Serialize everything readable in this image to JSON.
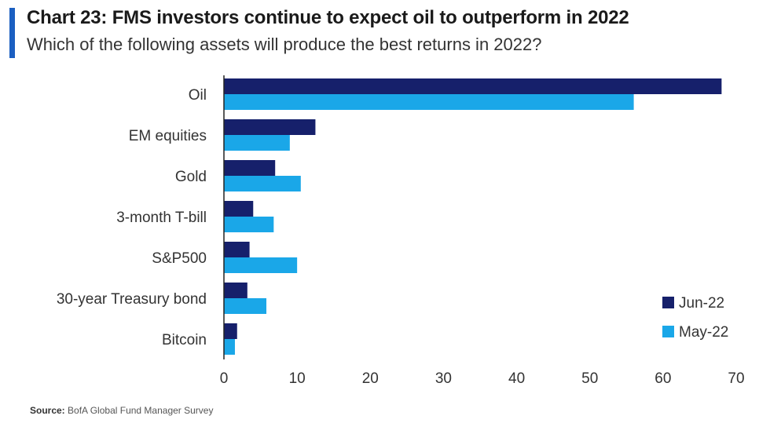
{
  "header": {
    "title": "Chart 23: FMS investors continue to expect oil to outperform in 2022",
    "subtitle": "Which of the following assets will produce the best returns in 2022?"
  },
  "footer": {
    "source_label": "Source:",
    "source_text": "BofA Global Fund Manager Survey"
  },
  "colors": {
    "accent_bar": "#1b5fc1",
    "jun": "#16206b",
    "may": "#1aa7e8"
  },
  "chart_data": {
    "type": "bar",
    "orientation": "horizontal",
    "categories": [
      "Oil",
      "EM equities",
      "Gold",
      "3-month T-bill",
      "S&P500",
      "30-year Treasury bond",
      "Bitcoin"
    ],
    "series": [
      {
        "name": "Jun-22",
        "values": [
          68,
          12.5,
          7,
          4,
          3.5,
          3.2,
          1.8
        ]
      },
      {
        "name": "May-22",
        "values": [
          56,
          9,
          10.5,
          6.8,
          10,
          5.8,
          1.5
        ]
      }
    ],
    "xlim": [
      0,
      70
    ],
    "xticks": [
      0,
      10,
      20,
      30,
      40,
      50,
      60,
      70
    ],
    "grid": false,
    "legend_position": "bottom-right"
  }
}
